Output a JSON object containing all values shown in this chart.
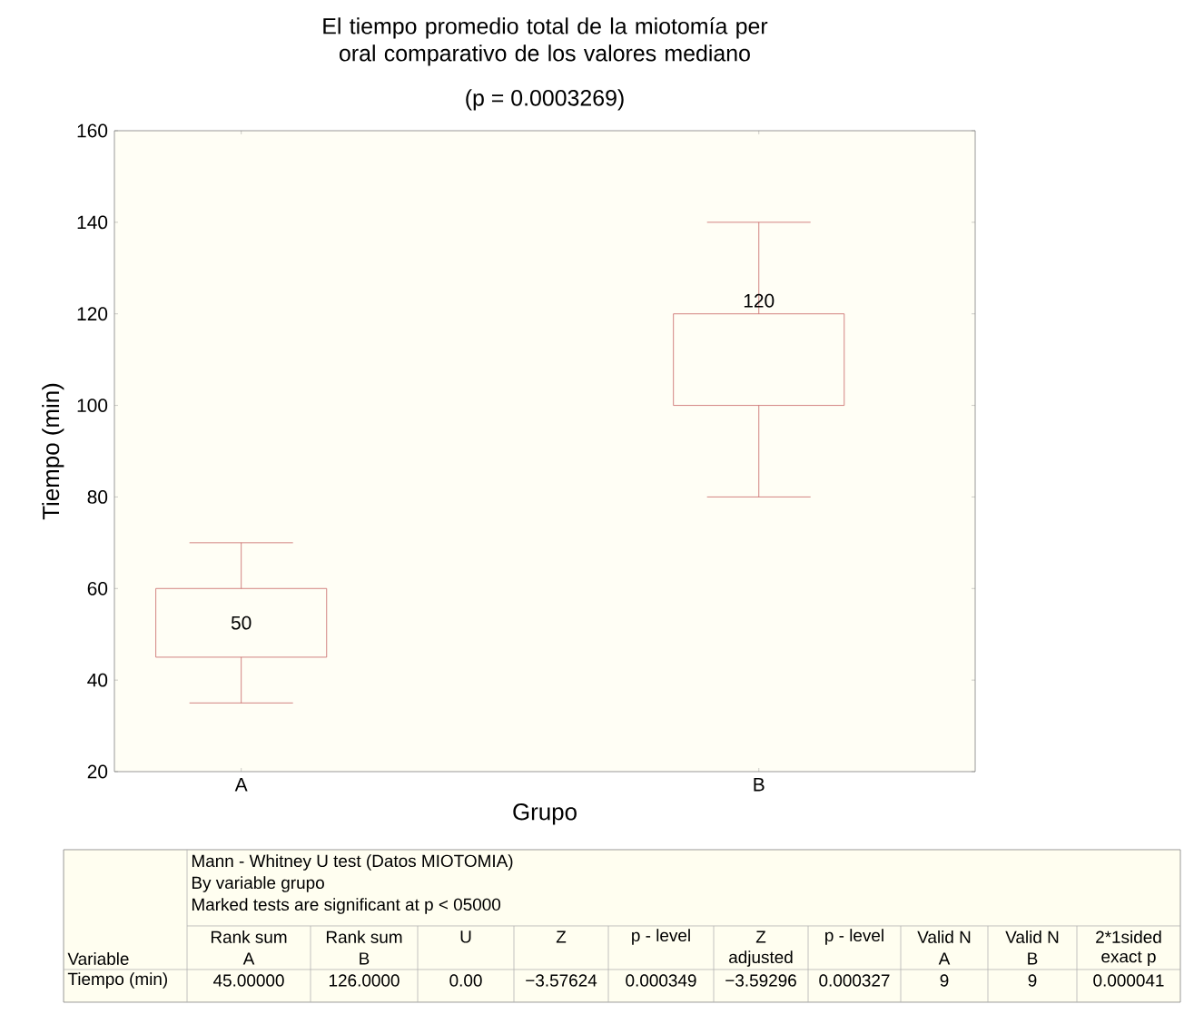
{
  "chart_data": {
    "type": "box",
    "title": "El tiempo promedio total de la miotomía per oral comparativo de los valores mediano",
    "subtitle": "(p = 0.0003269)",
    "xlabel": "Grupo",
    "ylabel": "Tiempo (min)",
    "categories": [
      "A",
      "B"
    ],
    "series": [
      {
        "color": "#c86464",
        "boxes": [
          {
            "low": 35,
            "q1": 45,
            "q3": 60,
            "high": 70
          },
          {
            "low": 80,
            "q1": 100,
            "q3": 120,
            "high": 140
          }
        ]
      }
    ],
    "ylim": [
      20,
      160
    ],
    "yticks": [
      20,
      40,
      60,
      80,
      100,
      120,
      140,
      160
    ],
    "annotations": [
      "Mann - Whitney U test (Datos MIOTOMIA)",
      "By variable grupo",
      "Marked tests are significant at p < 05000",
      "Variable",
      "Rank sum",
      "Rank sum",
      "U",
      "Z",
      "p - level",
      "Z",
      "p - level",
      "Valid N",
      "Valid N",
      "2*1sided",
      "A",
      "B",
      "adjusted",
      "A",
      "B",
      "exact p",
      "Tiempo (min)",
      "45.00000",
      "126.0000",
      "0.00",
      "−3.57624",
      "0.000349",
      "−3.59296",
      "0.000327",
      "9",
      "9",
      "0.000041",
      "50",
      "120"
    ]
  }
}
